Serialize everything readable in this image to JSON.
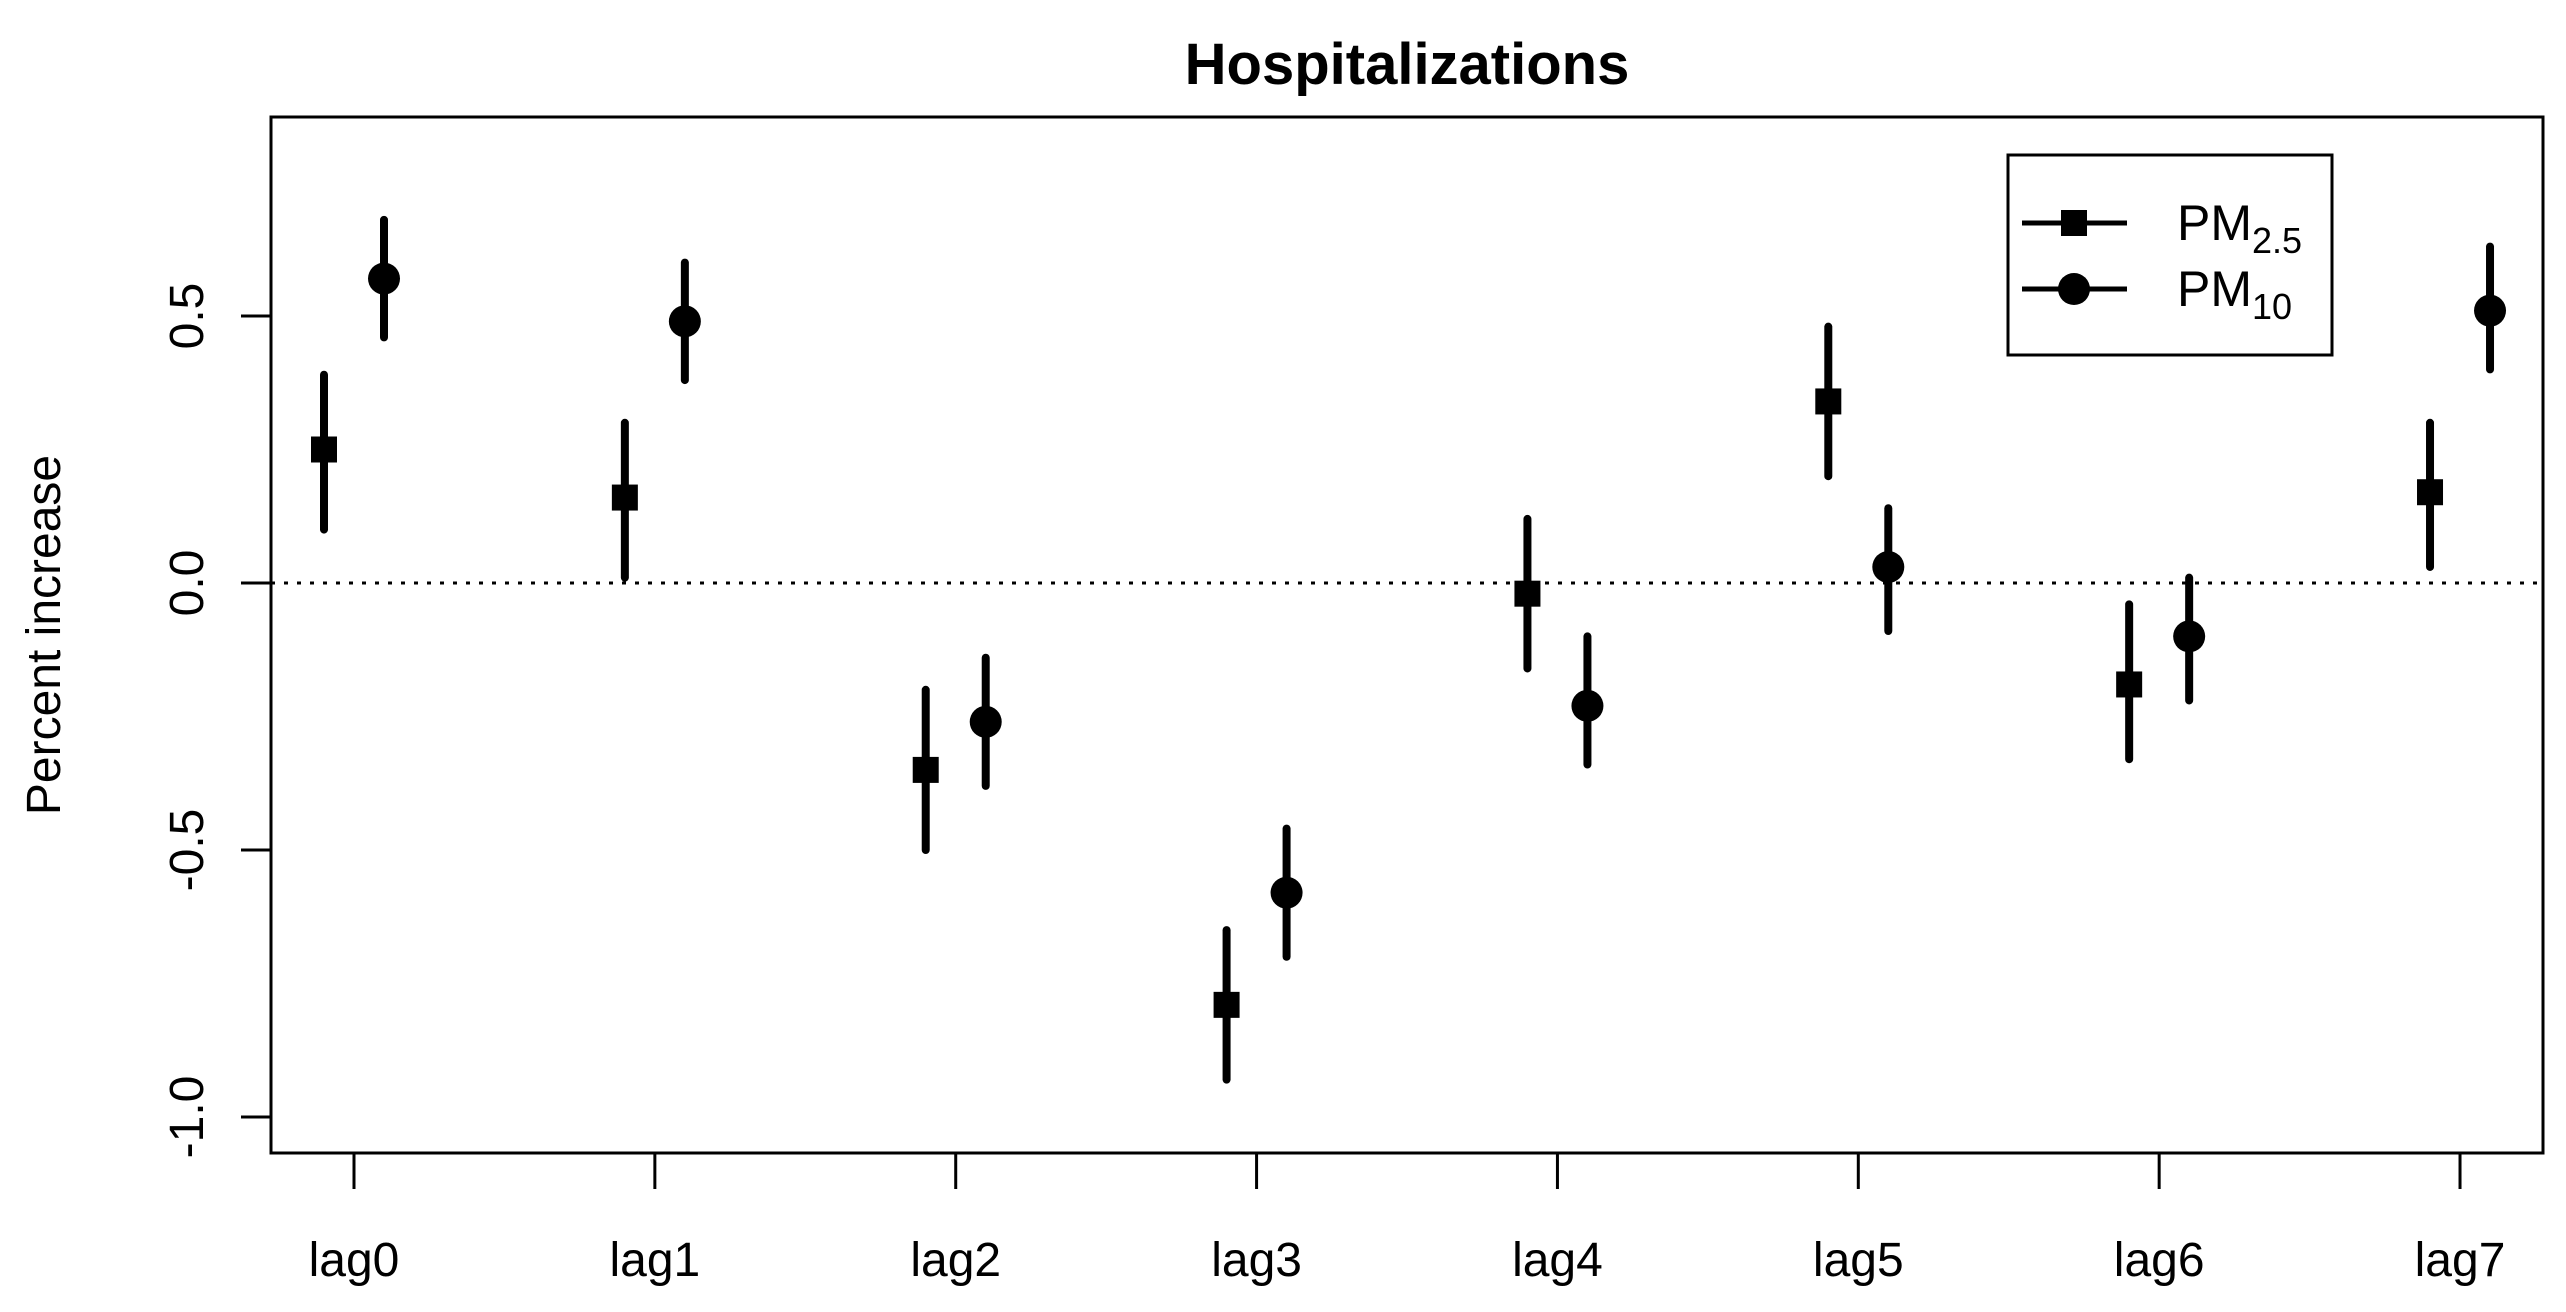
{
  "figure": {
    "background_color": "#ffffff",
    "foreground_color": "#000000"
  },
  "chart_data": {
    "type": "scatter",
    "subtype": "point-estimates-with-error-bars",
    "title": "Hospitalizations",
    "xlabel": "",
    "ylabel": "Percent increase",
    "categories": [
      "lag0",
      "lag1",
      "lag2",
      "lag3",
      "lag4",
      "lag5",
      "lag6",
      "lag7"
    ],
    "ylim": [
      -1.07,
      0.87
    ],
    "yticks": [
      {
        "value": 0.5,
        "label": "0.5"
      },
      {
        "value": 0.0,
        "label": "0.0"
      },
      {
        "value": -0.5,
        "label": "-0.5"
      },
      {
        "value": -1.0,
        "label": "-1.0"
      }
    ],
    "zero_line": {
      "value": 0.0,
      "style": "dotted"
    },
    "grid": false,
    "legend": {
      "position": "top-right",
      "entries": [
        {
          "base": "PM",
          "sub": "2.5",
          "marker": "square"
        },
        {
          "base": "PM",
          "sub": "10",
          "marker": "circle"
        }
      ]
    },
    "series": [
      {
        "name": "PM2.5",
        "marker": "square",
        "color": "#000000",
        "estimates": [
          0.25,
          0.16,
          -0.35,
          -0.79,
          -0.02,
          0.34,
          -0.19,
          0.17
        ],
        "lower": [
          0.1,
          0.01,
          -0.5,
          -0.93,
          -0.16,
          0.2,
          -0.33,
          0.03
        ],
        "upper": [
          0.39,
          0.3,
          -0.2,
          -0.65,
          0.12,
          0.48,
          -0.04,
          0.3
        ]
      },
      {
        "name": "PM10",
        "marker": "circle",
        "color": "#000000",
        "estimates": [
          0.57,
          0.49,
          -0.26,
          -0.58,
          -0.23,
          0.03,
          -0.1,
          0.51
        ],
        "lower": [
          0.46,
          0.38,
          -0.38,
          -0.7,
          -0.34,
          -0.09,
          -0.22,
          0.4
        ],
        "upper": [
          0.68,
          0.6,
          -0.14,
          -0.46,
          -0.1,
          0.14,
          0.01,
          0.63
        ]
      }
    ]
  }
}
